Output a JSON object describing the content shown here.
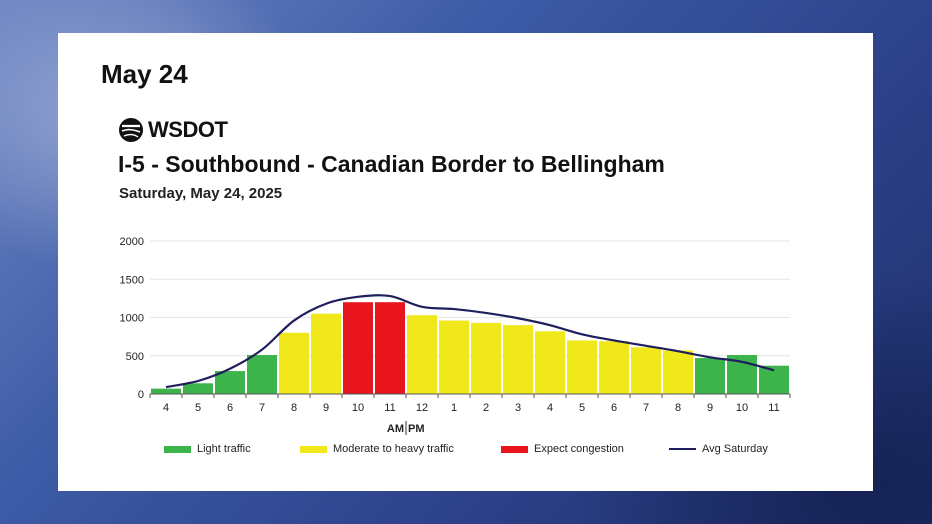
{
  "page": {
    "heading": "May 24",
    "logo_text": "WSDOT",
    "logo_icon": "wsdot-logo-icon"
  },
  "colors": {
    "light": "#3cb44b",
    "moderate": "#f0e81a",
    "congestion": "#e8141e",
    "avg_line": "#1f1f5e"
  },
  "chart_data": {
    "type": "bar",
    "title": "I-5 - Southbound - Canadian Border to Bellingham",
    "subtitle": "Saturday, May 24, 2025",
    "xlabel": "",
    "ylabel": "",
    "ylim": [
      0,
      2000
    ],
    "yticks": [
      "0",
      "500",
      "1000",
      "1500",
      "2000"
    ],
    "categories": [
      "4",
      "5",
      "6",
      "7",
      "8",
      "9",
      "10",
      "11",
      "12",
      "1",
      "2",
      "3",
      "4",
      "5",
      "6",
      "7",
      "8",
      "9",
      "10",
      "11"
    ],
    "values": [
      70,
      140,
      300,
      510,
      800,
      1050,
      1200,
      1200,
      1030,
      960,
      930,
      900,
      820,
      700,
      690,
      610,
      570,
      470,
      510,
      370
    ],
    "levels": [
      "light",
      "light",
      "light",
      "light",
      "moderate",
      "moderate",
      "congestion",
      "congestion",
      "moderate",
      "moderate",
      "moderate",
      "moderate",
      "moderate",
      "moderate",
      "moderate",
      "moderate",
      "moderate",
      "light",
      "light",
      "light"
    ],
    "series": [
      {
        "name": "Avg Saturday",
        "type": "line",
        "values": [
          90,
          170,
          330,
          580,
          960,
          1180,
          1270,
          1280,
          1140,
          1110,
          1060,
          990,
          900,
          780,
          700,
          630,
          560,
          480,
          420,
          310
        ]
      }
    ],
    "ampm_label": "AM PM",
    "am_label": "AM",
    "pm_label": "PM",
    "grid": true,
    "legend": {
      "position": "bottom",
      "items": [
        {
          "label": "Light traffic",
          "kind": "bar",
          "level": "light"
        },
        {
          "label": "Moderate to heavy traffic",
          "kind": "bar",
          "level": "moderate"
        },
        {
          "label": "Expect congestion",
          "kind": "bar",
          "level": "congestion"
        },
        {
          "label": "Avg Saturday",
          "kind": "line",
          "level": "avg_line"
        }
      ]
    }
  }
}
